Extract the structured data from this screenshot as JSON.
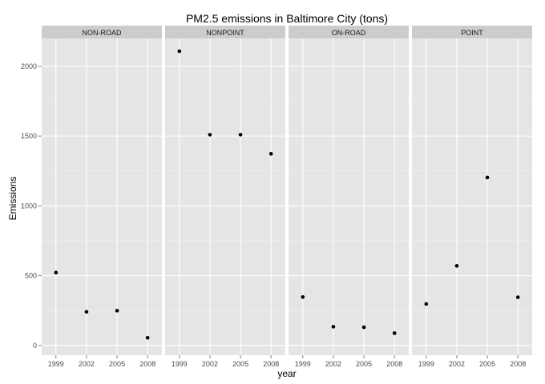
{
  "chart_data": {
    "type": "scatter",
    "title": "PM2.5 emissions in Baltimore City (tons)",
    "xlabel": "year",
    "ylabel": "Emissions",
    "ylim": [
      -70,
      2200
    ],
    "x_ticks": [
      1999,
      2002,
      2005,
      2008
    ],
    "y_ticks": [
      0,
      500,
      1000,
      1500,
      2000
    ],
    "panels": [
      {
        "name": "NON-ROAD",
        "x": [
          1999,
          2002,
          2005,
          2008
        ],
        "y": [
          522,
          241,
          249,
          55
        ]
      },
      {
        "name": "NONPOINT",
        "x": [
          1999,
          2002,
          2005,
          2008
        ],
        "y": [
          2108,
          1510,
          1510,
          1373
        ]
      },
      {
        "name": "ON-ROAD",
        "x": [
          1999,
          2002,
          2005,
          2008
        ],
        "y": [
          347,
          134,
          130,
          88
        ]
      },
      {
        "name": "POINT",
        "x": [
          1999,
          2002,
          2005,
          2008
        ],
        "y": [
          297,
          570,
          1203,
          345
        ]
      }
    ],
    "grid": true,
    "colors": {
      "panel_background": "#e5e5e5",
      "strip_background": "#cccccc",
      "grid": "#ffffff",
      "point": "#000000"
    }
  }
}
